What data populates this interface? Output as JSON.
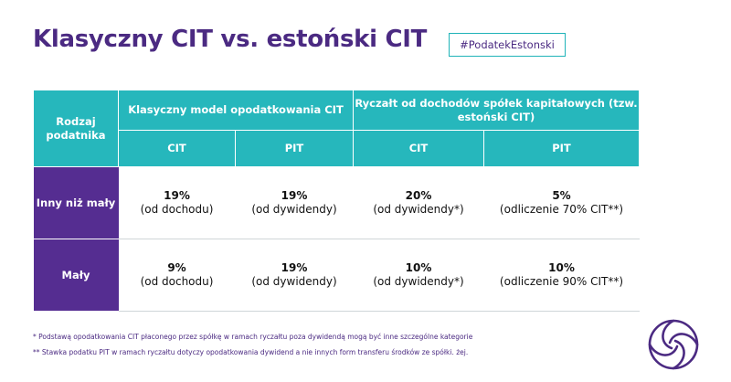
{
  "title": "Klasyczny CIT vs. estoński CIT",
  "hashtag": "#PodatekEstonski",
  "table": {
    "corner_header": "Rodzaj podatnika",
    "groups": [
      "Klasyczny model opodatkowania CIT",
      "Ryczałt od dochodów spółek kapitałowych (tzw. estoński CIT)"
    ],
    "subheaders": [
      "CIT",
      "PIT",
      "CIT",
      "PIT"
    ],
    "rows": [
      {
        "label": "Inny niż mały",
        "cells": [
          {
            "value": "19%",
            "note": "(od dochodu)"
          },
          {
            "value": "19%",
            "note": "(od dywidendy)"
          },
          {
            "value": "20%",
            "note": "(od dywidendy*)"
          },
          {
            "value": "5%",
            "note": "(odliczenie 70% CIT**)"
          }
        ]
      },
      {
        "label": "Mały",
        "cells": [
          {
            "value": "9%",
            "note": "(od dochodu)"
          },
          {
            "value": "19%",
            "note": "(od dywidendy)"
          },
          {
            "value": "10%",
            "note": "(od dywidendy*)"
          },
          {
            "value": "10%",
            "note": "(odliczenie 90% CIT**)"
          }
        ]
      }
    ]
  },
  "footnotes": [
    "* Podstawą opodatkowania CIT płaconego przez spółkę w ramach ryczałtu poza dywidendą mogą być inne szczególne kategorie",
    "** Stawka podatku PIT w ramach ryczałtu dotyczy opodatkowania dywidend a nie innych form transferu środków ze spółki. żej."
  ],
  "colors": {
    "brand_purple": "#4b2a82",
    "row_label_purple": "#552d91",
    "header_teal": "#26b7bc"
  },
  "logo_icon": "swirl-logo-icon"
}
